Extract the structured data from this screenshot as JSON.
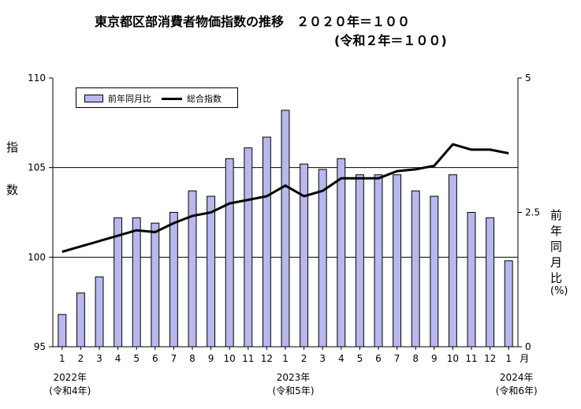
{
  "title": {
    "main": "東京都区部消費者物価指数の推移　２０２０年＝１００",
    "sub": "(令和２年＝１００)"
  },
  "left_axis_title": [
    "指",
    "数"
  ],
  "right_axis_title": [
    "前",
    "年",
    "同",
    "月",
    "比",
    "(%)"
  ],
  "chart_data": {
    "type": "bar",
    "categories": [
      "1",
      "2",
      "3",
      "4",
      "5",
      "6",
      "7",
      "8",
      "9",
      "10",
      "11",
      "12",
      "1",
      "2",
      "3",
      "4",
      "5",
      "6",
      "7",
      "8",
      "9",
      "10",
      "11",
      "12",
      "1"
    ],
    "category_suffix": "月",
    "year_labels": [
      {
        "index": 0,
        "year": "2022年",
        "era": "(令和4年)"
      },
      {
        "index": 12,
        "year": "2023年",
        "era": "(令和5年)"
      },
      {
        "index": 24,
        "year": "2024年",
        "era": "(令和6年)"
      }
    ],
    "left_axis": {
      "ylim": [
        95,
        110
      ],
      "ticks": [
        95,
        100,
        105,
        110
      ],
      "gridlines": [
        100,
        105
      ]
    },
    "right_axis": {
      "ylim": [
        0,
        5
      ],
      "ticks": [
        "0",
        "2.5",
        "5"
      ]
    },
    "legend": {
      "position": "top-left",
      "bar_label": "前年同月比",
      "line_label": "総合指数"
    },
    "series": [
      {
        "name": "前年同月比",
        "type": "bar",
        "axis": "right",
        "values": [
          0.6,
          1.0,
          1.3,
          2.4,
          2.4,
          2.3,
          2.5,
          2.9,
          2.8,
          3.5,
          3.7,
          3.9,
          4.4,
          3.4,
          3.3,
          3.5,
          3.2,
          3.2,
          3.2,
          2.9,
          2.8,
          3.2,
          2.5,
          2.4,
          1.6
        ],
        "color": "#b8b8ee"
      },
      {
        "name": "総合指数",
        "type": "line",
        "axis": "left",
        "values": [
          100.3,
          100.6,
          100.9,
          101.2,
          101.5,
          101.4,
          101.9,
          102.3,
          102.5,
          103.0,
          103.2,
          103.4,
          104.0,
          103.4,
          103.7,
          104.4,
          104.4,
          104.4,
          104.8,
          104.9,
          105.1,
          106.3,
          106.0,
          106.0,
          105.8
        ],
        "color": "#000000"
      }
    ]
  }
}
